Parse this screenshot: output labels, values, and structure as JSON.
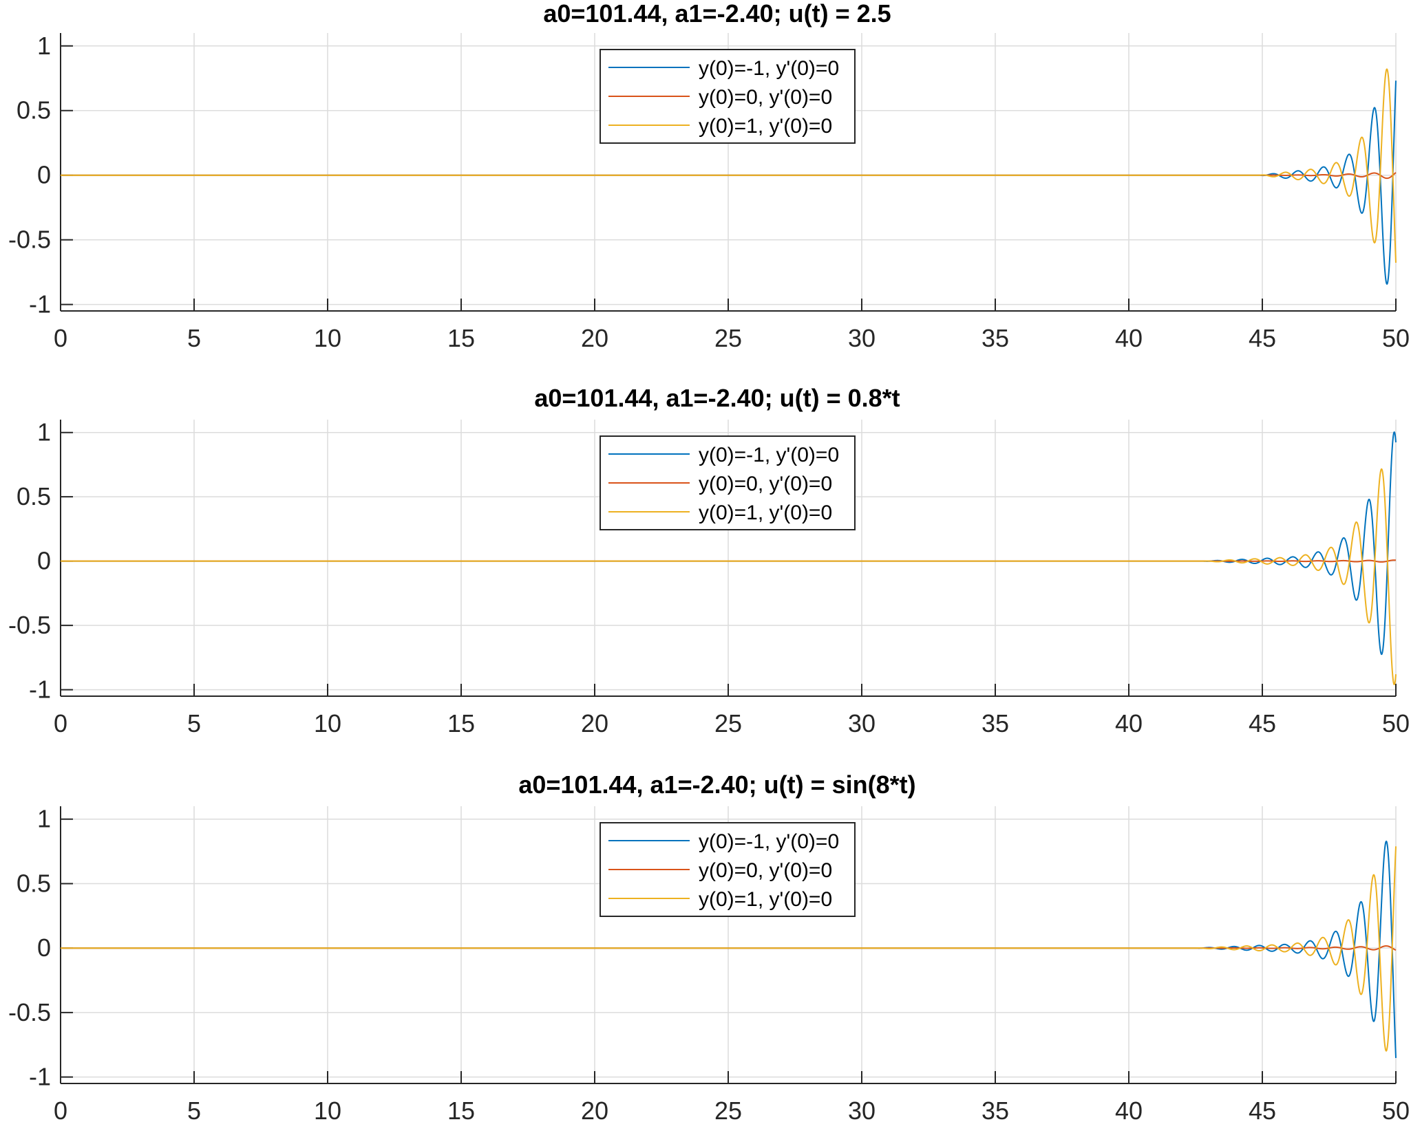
{
  "chart_data": [
    {
      "type": "line",
      "title": "a0=101.44, a1=-2.40; u(t) = 2.5",
      "xlabel": "",
      "ylabel": "",
      "xlim": [
        0,
        50
      ],
      "ylim": [
        -1.05,
        1.1
      ],
      "x_ticks": [
        0,
        5,
        10,
        15,
        20,
        25,
        30,
        35,
        40,
        45,
        50
      ],
      "y_ticks": [
        -1,
        -0.5,
        0,
        0.5,
        1
      ],
      "x_tick_labels": [
        "0",
        "5",
        "10",
        "15",
        "20",
        "25",
        "30",
        "35",
        "40",
        "45",
        "50"
      ],
      "y_tick_labels": [
        "-1",
        "-0.5",
        "0",
        "0.5",
        "1"
      ],
      "grid": true,
      "legend_position": "top-center",
      "osc_start": 44.9,
      "series": [
        {
          "name": "y(0)=-1, y'(0)=0",
          "color": "#0072bd",
          "sign": 1,
          "envelope": [
            [
              44.9,
              0.0
            ],
            [
              47,
              0.05
            ],
            [
              48,
              0.12
            ],
            [
              49,
              0.42
            ],
            [
              49.5,
              0.75
            ],
            [
              50,
              1.08
            ]
          ]
        },
        {
          "name": "y(0)=0, y'(0)=0",
          "color": "#d95319",
          "sign": 1,
          "envelope": [
            [
              44.9,
              0.0
            ],
            [
              47,
              0.003
            ],
            [
              48,
              0.008
            ],
            [
              49,
              0.015
            ],
            [
              50,
              0.03
            ]
          ]
        },
        {
          "name": "y(0)=1, y'(0)=0",
          "color": "#edb120",
          "sign": -1,
          "envelope": [
            [
              44.9,
              0.0
            ],
            [
              47,
              0.05
            ],
            [
              48,
              0.12
            ],
            [
              49,
              0.42
            ],
            [
              49.5,
              0.75
            ],
            [
              50,
              1.0
            ]
          ]
        }
      ]
    },
    {
      "type": "line",
      "title": "a0=101.44, a1=-2.40; u(t) = 0.8*t",
      "xlabel": "",
      "ylabel": "",
      "xlim": [
        0,
        50
      ],
      "ylim": [
        -1.05,
        1.1
      ],
      "x_ticks": [
        0,
        5,
        10,
        15,
        20,
        25,
        30,
        35,
        40,
        45,
        50
      ],
      "y_ticks": [
        -1,
        -0.5,
        0,
        0.5,
        1
      ],
      "x_tick_labels": [
        "0",
        "5",
        "10",
        "15",
        "20",
        "25",
        "30",
        "35",
        "40",
        "45",
        "50"
      ],
      "y_tick_labels": [
        "-1",
        "-0.5",
        "0",
        "0.5",
        "1"
      ],
      "grid": true,
      "legend_position": "top-center",
      "osc_start": 42.8,
      "series": [
        {
          "name": "y(0)=-1, y'(0)=0",
          "color": "#0072bd",
          "sign": 1,
          "envelope": [
            [
              42.8,
              0.0
            ],
            [
              46,
              0.03
            ],
            [
              47.5,
              0.1
            ],
            [
              48.5,
              0.3
            ],
            [
              49.3,
              0.65
            ],
            [
              50,
              1.05
            ]
          ]
        },
        {
          "name": "y(0)=0, y'(0)=0",
          "color": "#d95319",
          "sign": 1,
          "envelope": [
            [
              42.8,
              0.0
            ],
            [
              46,
              0.002
            ],
            [
              48,
              0.004
            ],
            [
              50,
              0.008
            ]
          ]
        },
        {
          "name": "y(0)=1, y'(0)=0",
          "color": "#edb120",
          "sign": -1,
          "envelope": [
            [
              42.8,
              0.0
            ],
            [
              46,
              0.03
            ],
            [
              47.5,
              0.1
            ],
            [
              48.5,
              0.3
            ],
            [
              49.3,
              0.65
            ],
            [
              50,
              1.0
            ]
          ]
        }
      ]
    },
    {
      "type": "line",
      "title": "a0=101.44, a1=-2.40; u(t) = sin(8*t)",
      "xlabel": "",
      "ylabel": "",
      "xlim": [
        0,
        50
      ],
      "ylim": [
        -1.05,
        1.1
      ],
      "x_ticks": [
        0,
        5,
        10,
        15,
        20,
        25,
        30,
        35,
        40,
        45,
        50
      ],
      "y_ticks": [
        -1,
        -0.5,
        0,
        0.5,
        1
      ],
      "x_tick_labels": [
        "0",
        "5",
        "10",
        "15",
        "20",
        "25",
        "30",
        "35",
        "40",
        "45",
        "50"
      ],
      "y_tick_labels": [
        "-1",
        "-0.5",
        "0",
        "0.5",
        "1"
      ],
      "grid": true,
      "legend_position": "top-center",
      "osc_start": 42.5,
      "series": [
        {
          "name": "y(0)=-1, y'(0)=0",
          "color": "#0072bd",
          "sign": 1,
          "envelope": [
            [
              42.5,
              0.0
            ],
            [
              46,
              0.03
            ],
            [
              47.5,
              0.1
            ],
            [
              48.5,
              0.3
            ],
            [
              49.3,
              0.65
            ],
            [
              50,
              1.08
            ]
          ]
        },
        {
          "name": "y(0)=0, y'(0)=0",
          "color": "#d95319",
          "sign": 1,
          "envelope": [
            [
              42.5,
              0.0
            ],
            [
              46,
              0.003
            ],
            [
              48,
              0.008
            ],
            [
              49,
              0.012
            ],
            [
              50,
              0.02
            ]
          ]
        },
        {
          "name": "y(0)=1, y'(0)=0",
          "color": "#edb120",
          "sign": -1,
          "envelope": [
            [
              42.5,
              0.0
            ],
            [
              46,
              0.03
            ],
            [
              47.5,
              0.1
            ],
            [
              48.5,
              0.3
            ],
            [
              49.3,
              0.65
            ],
            [
              50,
              1.0
            ]
          ]
        }
      ]
    }
  ]
}
